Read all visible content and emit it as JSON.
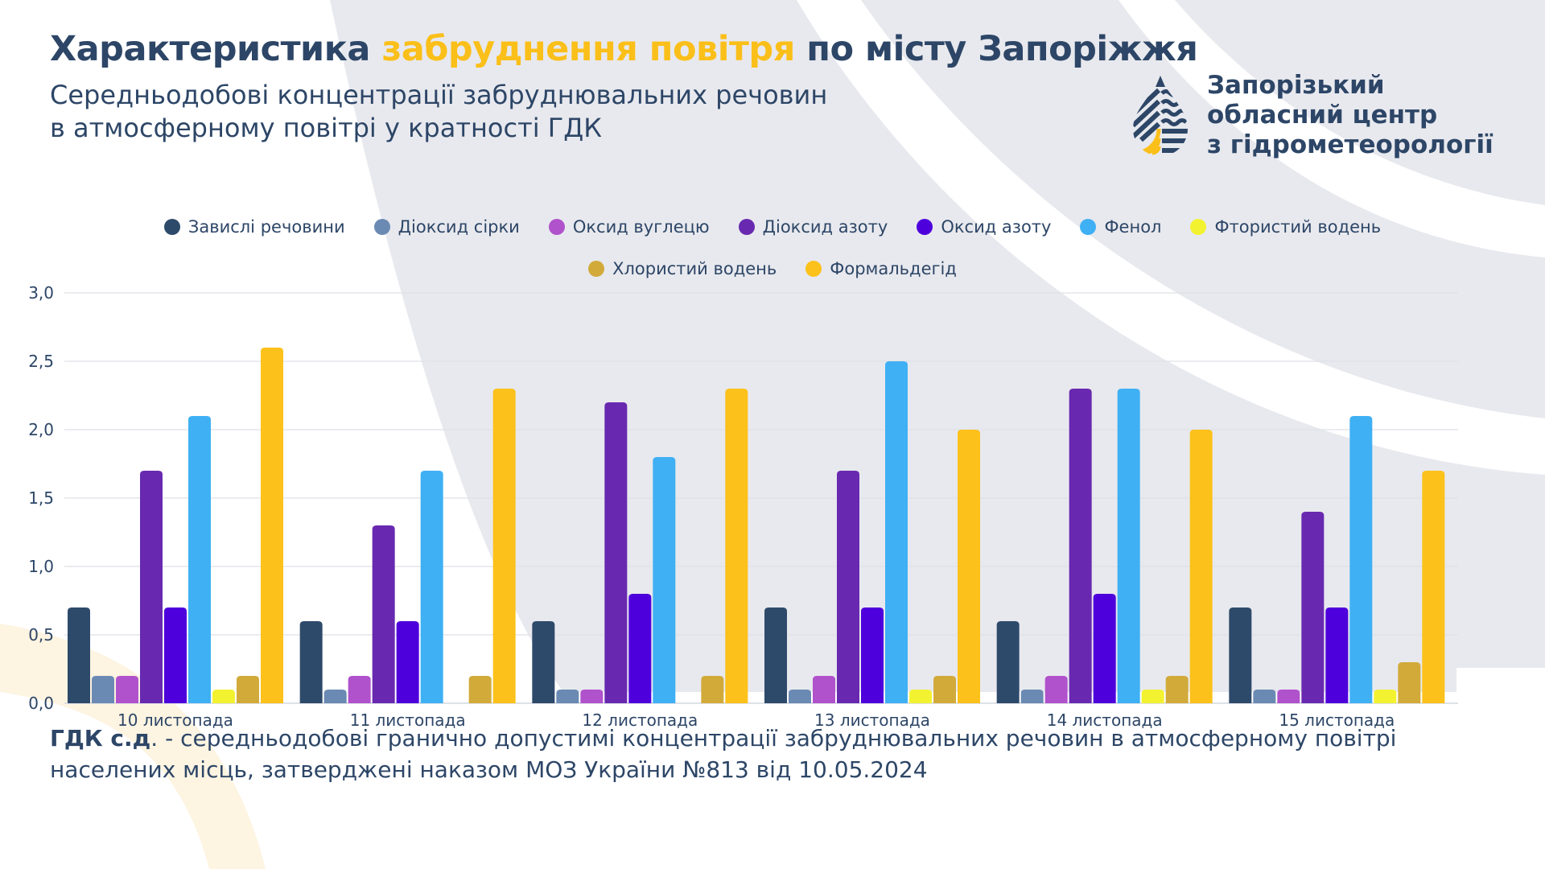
{
  "header": {
    "title_part1": "Характеристика ",
    "title_highlight": "забруднення повітря",
    "title_part2": " по місту Запоріжжя",
    "subtitle_line1": "Середньодобові концентрації забруднювальних речовин",
    "subtitle_line2": "в атмосферному повітрі у кратності ГДК"
  },
  "organization": {
    "logo_icon": "water-drop-logo-icon",
    "line1": "Запорізький",
    "line2": "обласний центр",
    "line3": "з гідрометеорології"
  },
  "colors": {
    "primary_text": "#2d4667",
    "accent": "#fbbf1a",
    "background_shape": "#e8e9ee",
    "background_arc_yellow": "#fdf4e1"
  },
  "footnote": {
    "term": "ГДК с.д",
    "line1_rest": ". - середньодобові гранично допустимі концентрації забруднювальних речовин в атмосферному повітрі",
    "line2": "населених місць, затверджені наказом МОЗ України №813 від 10.05.2024"
  },
  "chart_data": {
    "type": "bar",
    "title": "",
    "xlabel": "",
    "ylabel": "",
    "ylim": [
      0,
      3.0
    ],
    "yticks": [
      0.0,
      0.5,
      1.0,
      1.5,
      2.0,
      2.5,
      3.0
    ],
    "ytick_labels": [
      "0,0",
      "0,5",
      "1,0",
      "1,5",
      "2,0",
      "2,5",
      "3,0"
    ],
    "grid": true,
    "legend_position": "top-center",
    "categories": [
      "10 листопада",
      "11 листопада",
      "12 листопада",
      "13 листопада",
      "14 листопада",
      "15 листопада"
    ],
    "series": [
      {
        "name": "Завислі речовини",
        "color": "#2e4a6b",
        "values": [
          0.7,
          0.6,
          0.6,
          0.7,
          0.6,
          0.7
        ]
      },
      {
        "name": "Діоксид сірки",
        "color": "#6b8ab3",
        "values": [
          0.2,
          0.1,
          0.1,
          0.1,
          0.1,
          0.1
        ]
      },
      {
        "name": "Оксид вуглецю",
        "color": "#b052cc",
        "values": [
          0.2,
          0.2,
          0.1,
          0.2,
          0.2,
          0.1
        ]
      },
      {
        "name": "Діоксид азоту",
        "color": "#6829b0",
        "values": [
          1.7,
          1.3,
          2.2,
          1.7,
          2.3,
          1.4
        ]
      },
      {
        "name": "Оксид азоту",
        "color": "#4e00dc",
        "values": [
          0.7,
          0.6,
          0.8,
          0.7,
          0.8,
          0.7
        ]
      },
      {
        "name": "Фенол",
        "color": "#3fb0f4",
        "values": [
          2.1,
          1.7,
          1.8,
          2.5,
          2.3,
          2.1
        ]
      },
      {
        "name": "Фтористий водень",
        "color": "#f3f231",
        "values": [
          0.1,
          0.0,
          0.0,
          0.1,
          0.1,
          0.1
        ]
      },
      {
        "name": "Хлористий водень",
        "color": "#d1aa3a",
        "values": [
          0.2,
          0.2,
          0.2,
          0.2,
          0.2,
          0.3
        ]
      },
      {
        "name": "Формальдегід",
        "color": "#fcc11a",
        "values": [
          2.6,
          2.3,
          2.3,
          2.0,
          2.0,
          1.7
        ]
      }
    ]
  }
}
